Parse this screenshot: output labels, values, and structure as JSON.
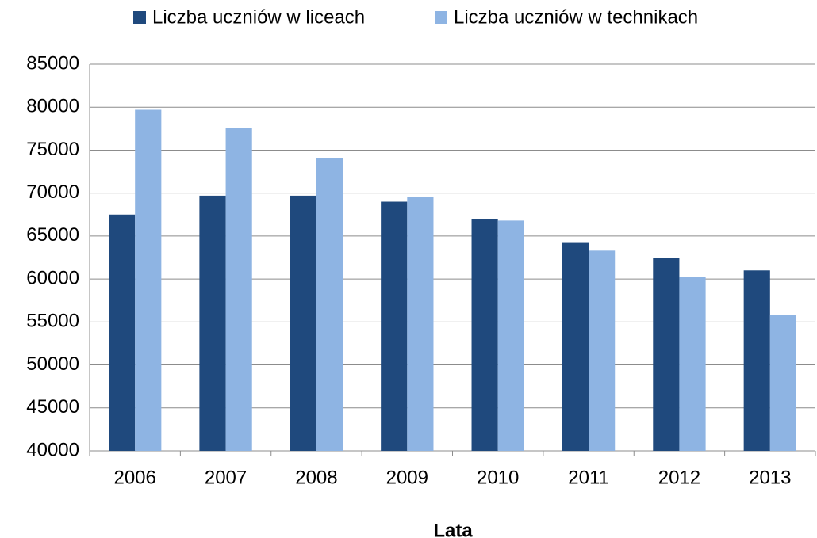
{
  "chart_data": {
    "type": "bar",
    "categories": [
      "2006",
      "2007",
      "2008",
      "2009",
      "2010",
      "2011",
      "2012",
      "2013"
    ],
    "series": [
      {
        "name": "Liczba uczniów w liceach",
        "color": "#1f497d",
        "values": [
          67500,
          69700,
          69700,
          69000,
          67000,
          64200,
          62500,
          61000
        ]
      },
      {
        "name": "Liczba uczniów w technikach",
        "color": "#8eb4e3",
        "values": [
          79700,
          77600,
          74100,
          69600,
          66800,
          63300,
          60200,
          55800
        ]
      }
    ],
    "x_label": "Lata",
    "ylim": [
      40000,
      85000
    ],
    "yticks": [
      40000,
      45000,
      50000,
      55000,
      60000,
      65000,
      70000,
      75000,
      80000,
      85000
    ],
    "grid": true,
    "legend": "top"
  }
}
